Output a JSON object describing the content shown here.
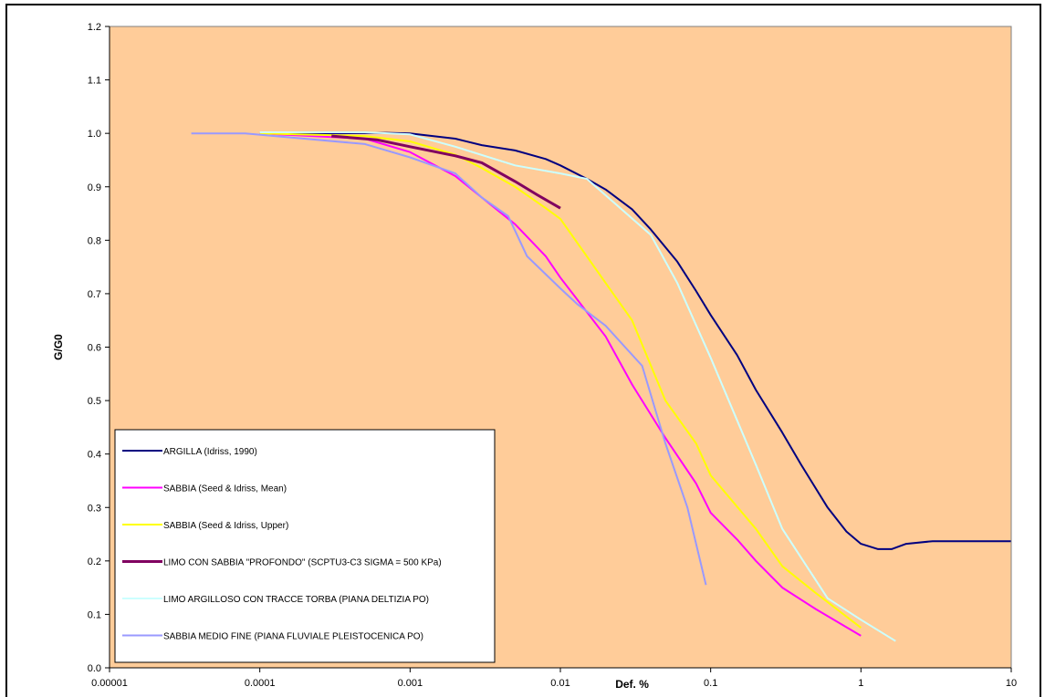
{
  "chart_data": {
    "type": "line",
    "title": "",
    "xlabel": "Def. %",
    "ylabel": "G/G0",
    "xscale": "log",
    "xlim": [
      1e-05,
      10
    ],
    "ylim": [
      0,
      1.2
    ],
    "x_ticks": [
      "0.00001",
      "0.0001",
      "0.001",
      "0.01",
      "0.1",
      "1",
      "10"
    ],
    "y_ticks": [
      "0.0",
      "0.1",
      "0.2",
      "0.3",
      "0.4",
      "0.5",
      "0.6",
      "0.7",
      "0.8",
      "0.9",
      "1.0",
      "1.1",
      "1.2"
    ],
    "plot_background": "#FFCC99",
    "grid": false,
    "legend_position": "bottom-left",
    "series": [
      {
        "name": "ARGILLA (Idriss, 1990)",
        "color": "#000080",
        "width": 2,
        "points": [
          [
            0.0001,
            1.0
          ],
          [
            0.0003,
            1.0
          ],
          [
            0.0007,
            1.001
          ],
          [
            0.001,
            1.0
          ],
          [
            0.002,
            0.99
          ],
          [
            0.003,
            0.978
          ],
          [
            0.005,
            0.968
          ],
          [
            0.008,
            0.952
          ],
          [
            0.01,
            0.94
          ],
          [
            0.015,
            0.915
          ],
          [
            0.02,
            0.895
          ],
          [
            0.03,
            0.858
          ],
          [
            0.04,
            0.82
          ],
          [
            0.06,
            0.76
          ],
          [
            0.08,
            0.705
          ],
          [
            0.1,
            0.66
          ],
          [
            0.15,
            0.585
          ],
          [
            0.2,
            0.52
          ],
          [
            0.3,
            0.44
          ],
          [
            0.4,
            0.38
          ],
          [
            0.6,
            0.3
          ],
          [
            0.8,
            0.255
          ],
          [
            1.0,
            0.232
          ],
          [
            1.3,
            0.222
          ],
          [
            1.6,
            0.222
          ],
          [
            2.0,
            0.232
          ],
          [
            3.0,
            0.237
          ],
          [
            10.0,
            0.237
          ]
        ]
      },
      {
        "name": "SABBIA (Seed & Idriss, Mean)",
        "color": "#FF00FF",
        "width": 2,
        "points": [
          [
            0.0001,
            1.0
          ],
          [
            0.0005,
            0.99
          ],
          [
            0.001,
            0.965
          ],
          [
            0.002,
            0.92
          ],
          [
            0.003,
            0.88
          ],
          [
            0.005,
            0.83
          ],
          [
            0.008,
            0.77
          ],
          [
            0.01,
            0.73
          ],
          [
            0.02,
            0.62
          ],
          [
            0.03,
            0.53
          ],
          [
            0.05,
            0.43
          ],
          [
            0.08,
            0.345
          ],
          [
            0.1,
            0.29
          ],
          [
            0.15,
            0.24
          ],
          [
            0.2,
            0.2
          ],
          [
            0.3,
            0.15
          ],
          [
            0.5,
            0.11
          ],
          [
            1.0,
            0.06
          ]
        ]
      },
      {
        "name": "SABBIA (Seed & Idriss, Upper)",
        "color": "#FFFF00",
        "width": 2,
        "points": [
          [
            0.0001,
            1.0
          ],
          [
            0.0005,
            0.995
          ],
          [
            0.001,
            0.985
          ],
          [
            0.002,
            0.96
          ],
          [
            0.003,
            0.935
          ],
          [
            0.005,
            0.9
          ],
          [
            0.008,
            0.86
          ],
          [
            0.01,
            0.84
          ],
          [
            0.02,
            0.72
          ],
          [
            0.03,
            0.65
          ],
          [
            0.05,
            0.5
          ],
          [
            0.08,
            0.42
          ],
          [
            0.1,
            0.36
          ],
          [
            0.2,
            0.26
          ],
          [
            0.3,
            0.19
          ],
          [
            0.5,
            0.14
          ],
          [
            1.0,
            0.075
          ]
        ]
      },
      {
        "name": "LIMO CON SABBIA \"PROFONDO\" (SCPTU3-C3 SIGMA = 500 KPa)",
        "color": "#800060",
        "width": 3,
        "points": [
          [
            0.0003,
            0.995
          ],
          [
            0.0006,
            0.988
          ],
          [
            0.001,
            0.975
          ],
          [
            0.002,
            0.958
          ],
          [
            0.003,
            0.945
          ],
          [
            0.005,
            0.91
          ],
          [
            0.007,
            0.885
          ],
          [
            0.01,
            0.86
          ]
        ]
      },
      {
        "name": "LIMO ARGILLOSO CON TRACCE TORBA (PIANA DELTIZIA PO)",
        "color": "#CCFFFF",
        "width": 2,
        "points": [
          [
            0.0001,
            1.002
          ],
          [
            0.0005,
            1.002
          ],
          [
            0.001,
            0.998
          ],
          [
            0.002,
            0.975
          ],
          [
            0.005,
            0.94
          ],
          [
            0.01,
            0.925
          ],
          [
            0.015,
            0.915
          ],
          [
            0.04,
            0.81
          ],
          [
            0.06,
            0.72
          ],
          [
            0.1,
            0.58
          ],
          [
            0.2,
            0.38
          ],
          [
            0.3,
            0.26
          ],
          [
            0.6,
            0.13
          ],
          [
            1.0,
            0.09
          ],
          [
            1.7,
            0.05
          ]
        ]
      },
      {
        "name": "SABBIA MEDIO FINE (PIANA FLUVIALE PLEISTOCENICA PO)",
        "color": "#9999FF",
        "width": 2,
        "points": [
          [
            3.5e-05,
            1.0
          ],
          [
            8e-05,
            1.0
          ],
          [
            0.0005,
            0.98
          ],
          [
            0.001,
            0.955
          ],
          [
            0.002,
            0.925
          ],
          [
            0.003,
            0.88
          ],
          [
            0.0045,
            0.845
          ],
          [
            0.006,
            0.77
          ],
          [
            0.01,
            0.71
          ],
          [
            0.013,
            0.68
          ],
          [
            0.02,
            0.64
          ],
          [
            0.035,
            0.565
          ],
          [
            0.05,
            0.42
          ],
          [
            0.07,
            0.3
          ],
          [
            0.093,
            0.155
          ]
        ]
      }
    ]
  }
}
